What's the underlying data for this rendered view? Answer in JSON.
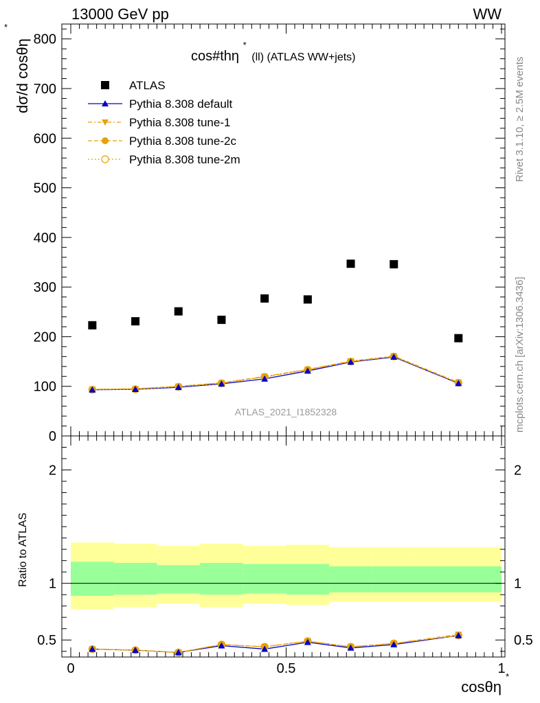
{
  "header": {
    "left": "13000 GeV pp",
    "right": "WW"
  },
  "side_labels": {
    "rivet": "Rivet 3.1.10, ≥ 2.5M events",
    "mcplots": "mcplots.cern.ch [arXiv:1306.3436]"
  },
  "watermark": "ATLAS_2021_I1852328",
  "chart_data": [
    {
      "type": "scatter",
      "title_main": "cos#thη",
      "title_sup": "*",
      "title_rest": "(ll) (ATLAS WW+jets)",
      "ylabel_main": "dσ/d cosθη",
      "ylabel_sup": "*",
      "ylim": [
        0,
        830
      ],
      "yticks": [
        {
          "v": 0,
          "label": "0"
        },
        {
          "v": 100,
          "label": "100"
        },
        {
          "v": 200,
          "label": "200"
        },
        {
          "v": 300,
          "label": "300"
        },
        {
          "v": 400,
          "label": "400"
        },
        {
          "v": 500,
          "label": "500"
        },
        {
          "v": 600,
          "label": "600"
        },
        {
          "v": 700,
          "label": "700"
        },
        {
          "v": 800,
          "label": "800"
        }
      ],
      "x": [
        0.05,
        0.15,
        0.25,
        0.35,
        0.45,
        0.55,
        0.65,
        0.75,
        0.9
      ],
      "series": [
        {
          "name": "ATLAS",
          "color": "#000000",
          "marker": "square",
          "values": [
            223,
            231,
            251,
            234,
            277,
            275,
            347,
            346,
            197
          ]
        },
        {
          "name": "Pythia 8.308 default",
          "color": "#0000cc",
          "marker": "triangle-up",
          "line": "solid",
          "values": [
            93,
            94,
            98,
            105,
            115,
            131,
            149,
            159,
            106
          ]
        },
        {
          "name": "Pythia 8.308 tune-1",
          "color": "#e8a200",
          "marker": "triangle-down",
          "line": "dashdot",
          "values": [
            94,
            95,
            100,
            107,
            120,
            134,
            151,
            161,
            108
          ]
        },
        {
          "name": "Pythia 8.308 tune-2c",
          "color": "#e8a200",
          "marker": "circle",
          "line": "dashed",
          "values": [
            94,
            95,
            100,
            107,
            119,
            134,
            150,
            160,
            107
          ]
        },
        {
          "name": "Pythia 8.308 tune-2m",
          "color": "#e8a200",
          "marker": "circle-open",
          "line": "dotted",
          "values": [
            93,
            94,
            99,
            106,
            119,
            133,
            150,
            160,
            107
          ]
        }
      ]
    },
    {
      "type": "scatter",
      "ylabel": "Ratio to ATLAS",
      "ylim": [
        0.35,
        2.3
      ],
      "yticks": [
        {
          "v": 0.5,
          "label": "0.5"
        },
        {
          "v": 1,
          "label": "1"
        },
        {
          "v": 2,
          "label": "2"
        }
      ],
      "xlabel_main": "cosθη",
      "xlabel_sup": "*",
      "xlim": [
        0,
        1
      ],
      "xticks": [
        {
          "v": 0,
          "label": "0"
        },
        {
          "v": 0.5,
          "label": "0.5"
        },
        {
          "v": 1,
          "label": "1"
        }
      ],
      "bins": [
        0,
        0.1,
        0.2,
        0.3,
        0.4,
        0.5,
        0.6,
        0.7,
        0.8,
        1.0
      ],
      "band_yellow": [
        [
          0.77,
          1.36
        ],
        [
          0.79,
          1.35
        ],
        [
          0.82,
          1.33
        ],
        [
          0.79,
          1.35
        ],
        [
          0.82,
          1.33
        ],
        [
          0.81,
          1.34
        ],
        [
          0.84,
          1.32
        ],
        [
          0.84,
          1.32
        ],
        [
          0.84,
          1.32
        ]
      ],
      "band_green": [
        [
          0.89,
          1.19
        ],
        [
          0.9,
          1.18
        ],
        [
          0.91,
          1.16
        ],
        [
          0.9,
          1.18
        ],
        [
          0.91,
          1.17
        ],
        [
          0.9,
          1.17
        ],
        [
          0.92,
          1.15
        ],
        [
          0.92,
          1.15
        ],
        [
          0.92,
          1.15
        ]
      ],
      "x": [
        0.05,
        0.15,
        0.25,
        0.35,
        0.45,
        0.55,
        0.65,
        0.75,
        0.9
      ],
      "series": [
        {
          "name": "Pythia 8.308 default",
          "color": "#0000cc",
          "marker": "triangle-up",
          "line": "solid",
          "values": [
            0.42,
            0.41,
            0.39,
            0.45,
            0.42,
            0.48,
            0.43,
            0.46,
            0.54
          ]
        },
        {
          "name": "Pythia 8.308 tune-1",
          "color": "#e8a200",
          "marker": "triangle-down",
          "line": "dashdot",
          "values": [
            0.42,
            0.41,
            0.39,
            0.46,
            0.44,
            0.49,
            0.44,
            0.47,
            0.55
          ]
        },
        {
          "name": "Pythia 8.308 tune-2c",
          "color": "#e8a200",
          "marker": "circle",
          "line": "dashed",
          "values": [
            0.42,
            0.41,
            0.39,
            0.46,
            0.44,
            0.49,
            0.44,
            0.47,
            0.54
          ]
        },
        {
          "name": "Pythia 8.308 tune-2m",
          "color": "#e8a200",
          "marker": "circle-open",
          "line": "dotted",
          "values": [
            0.42,
            0.41,
            0.39,
            0.46,
            0.44,
            0.49,
            0.44,
            0.47,
            0.54
          ]
        }
      ]
    }
  ]
}
